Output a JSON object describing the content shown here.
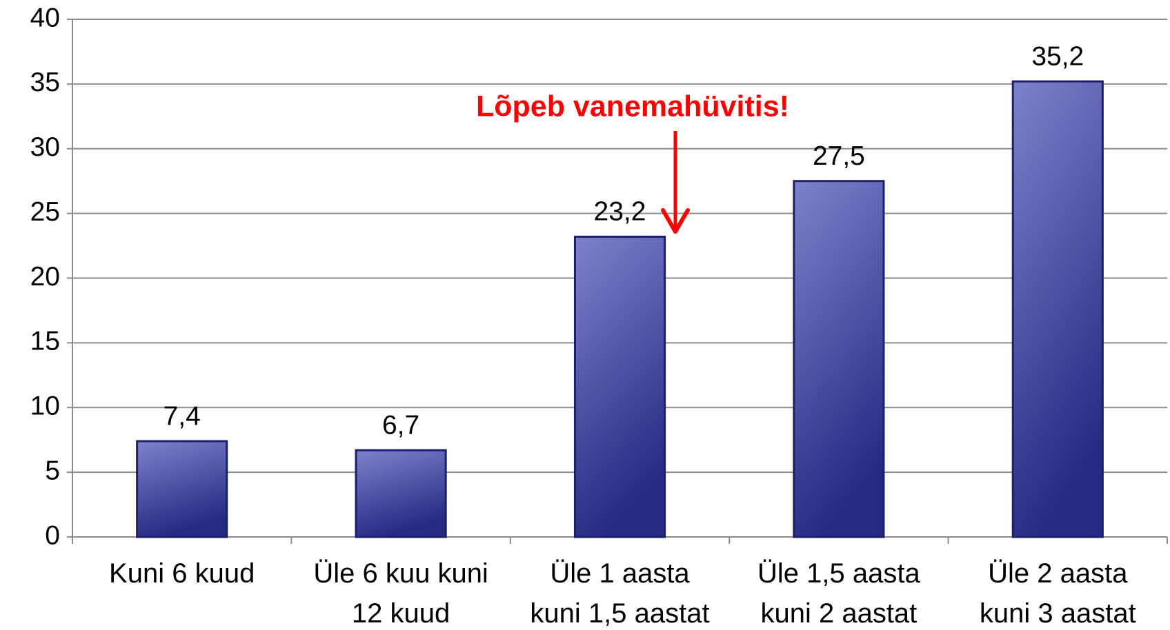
{
  "chart_data": {
    "type": "bar",
    "annotation": "Lõpeb vanemahüvitis!",
    "categories": [
      "Kuni 6 kuud",
      "Üle 6 kuu kuni\n12 kuud",
      "Üle 1 aasta\nkuni 1,5 aastat",
      "Üle 1,5 aasta\nkuni 2 aastat",
      "Üle 2 aasta\nkuni 3 aastat"
    ],
    "values": [
      7.4,
      6.7,
      23.2,
      27.5,
      35.2
    ],
    "value_labels": [
      "7,4",
      "6,7",
      "23,2",
      "27,5",
      "35,2"
    ],
    "color": "#4b4fa8",
    "annotation_color": "#ff0000",
    "ylim": [
      0,
      40
    ],
    "yticks": [
      0,
      5,
      10,
      15,
      20,
      25,
      30,
      35,
      40
    ],
    "grid": true
  }
}
